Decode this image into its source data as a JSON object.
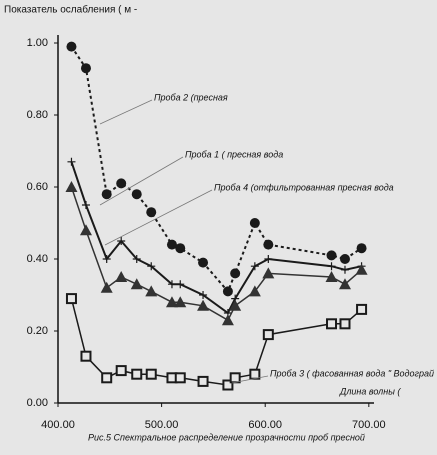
{
  "chart_data": {
    "type": "line",
    "y_label": "Показатель ослабления ( м -",
    "x_label": "Длина волны (",
    "caption": "Рис.5 Спектральное распределение прозрачности проб пресной",
    "x": [
      413,
      427,
      447,
      461,
      476,
      490,
      510,
      518,
      540,
      564,
      571,
      590,
      603,
      664,
      677,
      693
    ],
    "series": [
      {
        "name": "Проба 2 (пресная",
        "color": "#1a1a1a",
        "marker": "circle",
        "dash": true,
        "values": [
          0.99,
          0.93,
          0.58,
          0.61,
          0.58,
          0.53,
          0.44,
          0.43,
          0.39,
          0.31,
          0.36,
          0.5,
          0.44,
          0.41,
          0.4,
          0.43
        ]
      },
      {
        "name": "Проба 1 ( пресная вода",
        "color": "#1a1a1a",
        "marker": "plus",
        "dash": false,
        "values": [
          0.67,
          0.55,
          0.4,
          0.45,
          0.4,
          0.38,
          0.33,
          0.33,
          0.3,
          0.25,
          0.29,
          0.38,
          0.4,
          0.38,
          0.37,
          0.38
        ]
      },
      {
        "name": "Проба 4 (отфильтрованная пресная вода",
        "color": "#333333",
        "marker": "triangle",
        "dash": false,
        "values": [
          0.6,
          0.48,
          0.32,
          0.35,
          0.33,
          0.31,
          0.28,
          0.28,
          0.27,
          0.23,
          0.27,
          0.31,
          0.36,
          0.35,
          0.33,
          0.37
        ]
      },
      {
        "name": "Проба 3 ( фасованная вода \" Водограй",
        "color": "#1a1a1a",
        "marker": "square",
        "dash": false,
        "values": [
          0.29,
          0.13,
          0.07,
          0.09,
          0.08,
          0.08,
          0.07,
          0.07,
          0.06,
          0.05,
          0.07,
          0.08,
          0.19,
          0.22,
          0.22,
          0.26
        ]
      }
    ],
    "xlim": [
      400,
      705
    ],
    "ylim": [
      0,
      1.05
    ],
    "xticks": [
      {
        "value": 400,
        "label": "400.00"
      },
      {
        "value": 500,
        "label": "500.00"
      },
      {
        "value": 600,
        "label": "600.00"
      },
      {
        "value": 700,
        "label": "700.00"
      }
    ],
    "yticks": [
      {
        "value": 0,
        "label": "0.00"
      },
      {
        "value": 0.2,
        "label": "0.20"
      },
      {
        "value": 0.4,
        "label": "0.40"
      },
      {
        "value": 0.6,
        "label": "0.60"
      },
      {
        "value": 0.8,
        "label": "0.80"
      },
      {
        "value": 1.0,
        "label": "1.00"
      }
    ]
  }
}
